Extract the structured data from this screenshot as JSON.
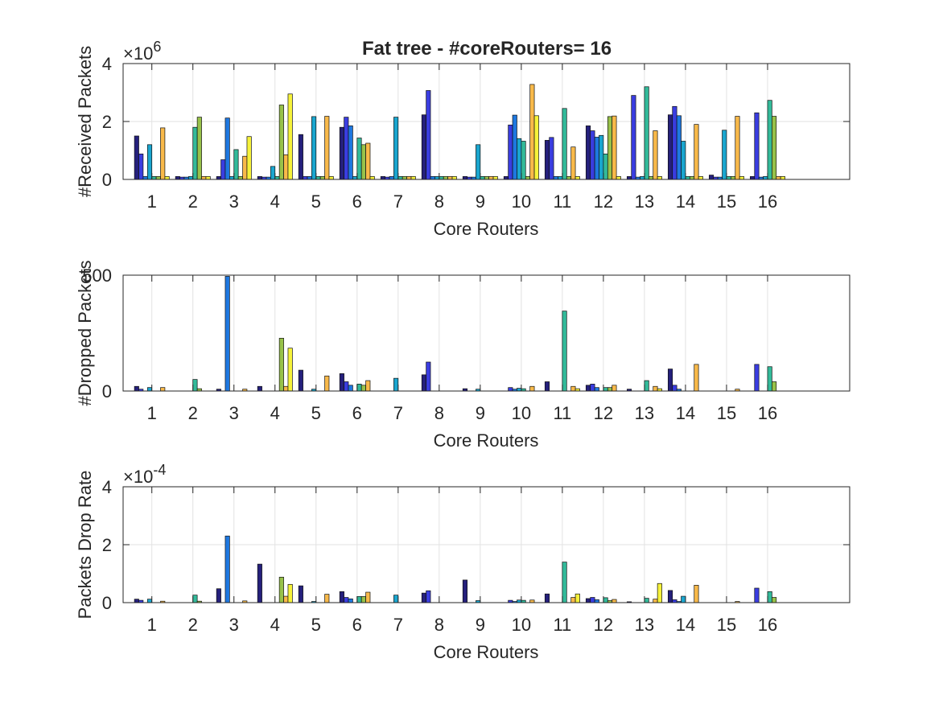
{
  "title": "Fat tree - #coreRouters= 16",
  "chart_data": [
    {
      "type": "bar",
      "title": "Fat tree - #coreRouters= 16",
      "xlabel": "Core Routers",
      "ylabel": "#Received Packets",
      "exponent_label": "×10",
      "exponent_power": "6",
      "categories": [
        "1",
        "2",
        "3",
        "4",
        "5",
        "6",
        "7",
        "8",
        "9",
        "10",
        "11",
        "12",
        "13",
        "14",
        "15",
        "16"
      ],
      "xlim": [
        0.3,
        18
      ],
      "ylim": [
        0,
        4000000
      ],
      "yticks": [
        0,
        2000000,
        4000000
      ],
      "ytick_labels": [
        "0",
        "2",
        "4"
      ],
      "grid": true,
      "series_count": 8,
      "series_colors": [
        "#25207c",
        "#3a3de0",
        "#1e78e0",
        "#1aa6cf",
        "#33ba9a",
        "#98c24a",
        "#f8b94a",
        "#f6f23a"
      ],
      "values": [
        [
          1500000,
          880000,
          100000,
          1200000,
          100000,
          100000,
          1780000,
          100000
        ],
        [
          100000,
          80000,
          80000,
          100000,
          1800000,
          2150000,
          100000,
          100000
        ],
        [
          100000,
          680000,
          2120000,
          100000,
          1030000,
          100000,
          800000,
          1480000
        ],
        [
          100000,
          80000,
          80000,
          450000,
          100000,
          2570000,
          850000,
          2950000
        ],
        [
          1550000,
          100000,
          100000,
          2170000,
          100000,
          100000,
          2180000,
          100000
        ],
        [
          1800000,
          2150000,
          1850000,
          100000,
          1430000,
          1200000,
          1250000,
          100000
        ],
        [
          100000,
          80000,
          100000,
          2150000,
          100000,
          100000,
          100000,
          100000
        ],
        [
          2230000,
          3070000,
          100000,
          100000,
          100000,
          100000,
          100000,
          100000
        ],
        [
          100000,
          80000,
          80000,
          1200000,
          100000,
          100000,
          100000,
          100000
        ],
        [
          100000,
          1880000,
          2220000,
          1410000,
          1320000,
          100000,
          3280000,
          2200000
        ],
        [
          1350000,
          1450000,
          100000,
          100000,
          2450000,
          100000,
          1120000,
          100000
        ],
        [
          1850000,
          1680000,
          1460000,
          1520000,
          880000,
          2170000,
          2190000,
          100000
        ],
        [
          100000,
          2900000,
          80000,
          100000,
          3200000,
          100000,
          1680000,
          100000
        ],
        [
          2230000,
          2520000,
          2200000,
          1320000,
          100000,
          100000,
          1900000,
          100000
        ],
        [
          150000,
          80000,
          80000,
          1700000,
          100000,
          100000,
          2180000,
          100000
        ],
        [
          100000,
          2300000,
          80000,
          100000,
          2730000,
          2180000,
          100000,
          100000
        ]
      ]
    },
    {
      "type": "bar",
      "xlabel": "Core Routers",
      "ylabel": "#Dropped Packets",
      "categories": [
        "1",
        "2",
        "3",
        "4",
        "5",
        "6",
        "7",
        "8",
        "9",
        "10",
        "11",
        "12",
        "13",
        "14",
        "15",
        "16"
      ],
      "xlim": [
        0.3,
        18
      ],
      "ylim": [
        0,
        500
      ],
      "yticks": [
        0,
        500
      ],
      "ytick_labels": [
        "0",
        "500"
      ],
      "grid": true,
      "series_count": 8,
      "values": [
        [
          20,
          8,
          0,
          15,
          0,
          0,
          15,
          0
        ],
        [
          0,
          0,
          0,
          0,
          50,
          10,
          0,
          0
        ],
        [
          8,
          0,
          495,
          0,
          0,
          0,
          8,
          0
        ],
        [
          20,
          0,
          0,
          0,
          0,
          228,
          20,
          185
        ],
        [
          90,
          0,
          0,
          8,
          0,
          0,
          65,
          0
        ],
        [
          75,
          40,
          25,
          0,
          30,
          25,
          45,
          0
        ],
        [
          0,
          0,
          0,
          55,
          0,
          0,
          0,
          0
        ],
        [
          70,
          125,
          0,
          0,
          0,
          0,
          0,
          0
        ],
        [
          10,
          0,
          0,
          8,
          0,
          0,
          0,
          0
        ],
        [
          0,
          15,
          8,
          12,
          10,
          0,
          20,
          0
        ],
        [
          40,
          0,
          0,
          0,
          345,
          0,
          20,
          10
        ],
        [
          25,
          30,
          15,
          0,
          15,
          15,
          25,
          0
        ],
        [
          8,
          0,
          0,
          0,
          45,
          0,
          20,
          10
        ],
        [
          95,
          25,
          8,
          0,
          0,
          0,
          115,
          0
        ],
        [
          0,
          0,
          0,
          0,
          0,
          0,
          8,
          0
        ],
        [
          0,
          115,
          0,
          0,
          105,
          40,
          0,
          0
        ]
      ]
    },
    {
      "type": "bar",
      "xlabel": "Core Routers",
      "ylabel": "Packets Drop Rate",
      "exponent_label": "×10",
      "exponent_power": "-4",
      "categories": [
        "1",
        "2",
        "3",
        "4",
        "5",
        "6",
        "7",
        "8",
        "9",
        "10",
        "11",
        "12",
        "13",
        "14",
        "15",
        "16"
      ],
      "xlim": [
        0.3,
        18
      ],
      "ylim": [
        0,
        0.0004
      ],
      "yticks": [
        0,
        0.0002,
        0.0004
      ],
      "ytick_labels": [
        "0",
        "2",
        "4"
      ],
      "grid": true,
      "series_count": 8,
      "values": [
        [
          1.2e-05,
          8e-06,
          0,
          1.2e-05,
          0,
          0,
          5e-06,
          0
        ],
        [
          0,
          0,
          0,
          0,
          2.6e-05,
          5e-06,
          0,
          0
        ],
        [
          4.8e-05,
          0,
          0.00023,
          0,
          0,
          0,
          6e-06,
          0
        ],
        [
          0.000133,
          0,
          0,
          0,
          0,
          8.8e-05,
          2.2e-05,
          6.3e-05
        ],
        [
          5.8e-05,
          0,
          0,
          4e-06,
          0,
          0,
          2.9e-05,
          0
        ],
        [
          3.8e-05,
          1.8e-05,
          1.3e-05,
          0,
          2.1e-05,
          2.1e-05,
          3.6e-05,
          0
        ],
        [
          0,
          0,
          0,
          2.6e-05,
          0,
          0,
          0,
          0
        ],
        [
          3.3e-05,
          4.1e-05,
          0,
          0,
          0,
          0,
          0,
          0
        ],
        [
          7.8e-05,
          0,
          0,
          7e-06,
          0,
          0,
          0,
          0
        ],
        [
          0,
          8e-06,
          4e-06,
          9e-06,
          8e-06,
          0,
          9e-06,
          0
        ],
        [
          3e-05,
          0,
          0,
          0,
          0.00014,
          0,
          1.8e-05,
          3e-05
        ],
        [
          1.4e-05,
          1.8e-05,
          1e-05,
          0,
          1.7e-05,
          7e-06,
          1.1e-05,
          0
        ],
        [
          3e-06,
          0,
          0,
          0,
          1.5e-05,
          0,
          1.2e-05,
          6.6e-05
        ],
        [
          4.2e-05,
          1e-05,
          4e-06,
          2.2e-05,
          0,
          0,
          6e-05,
          0
        ],
        [
          0,
          0,
          0,
          0,
          0,
          0,
          4e-06,
          0
        ],
        [
          0,
          5e-05,
          0,
          0,
          3.8e-05,
          1.8e-05,
          0,
          0
        ]
      ]
    }
  ]
}
